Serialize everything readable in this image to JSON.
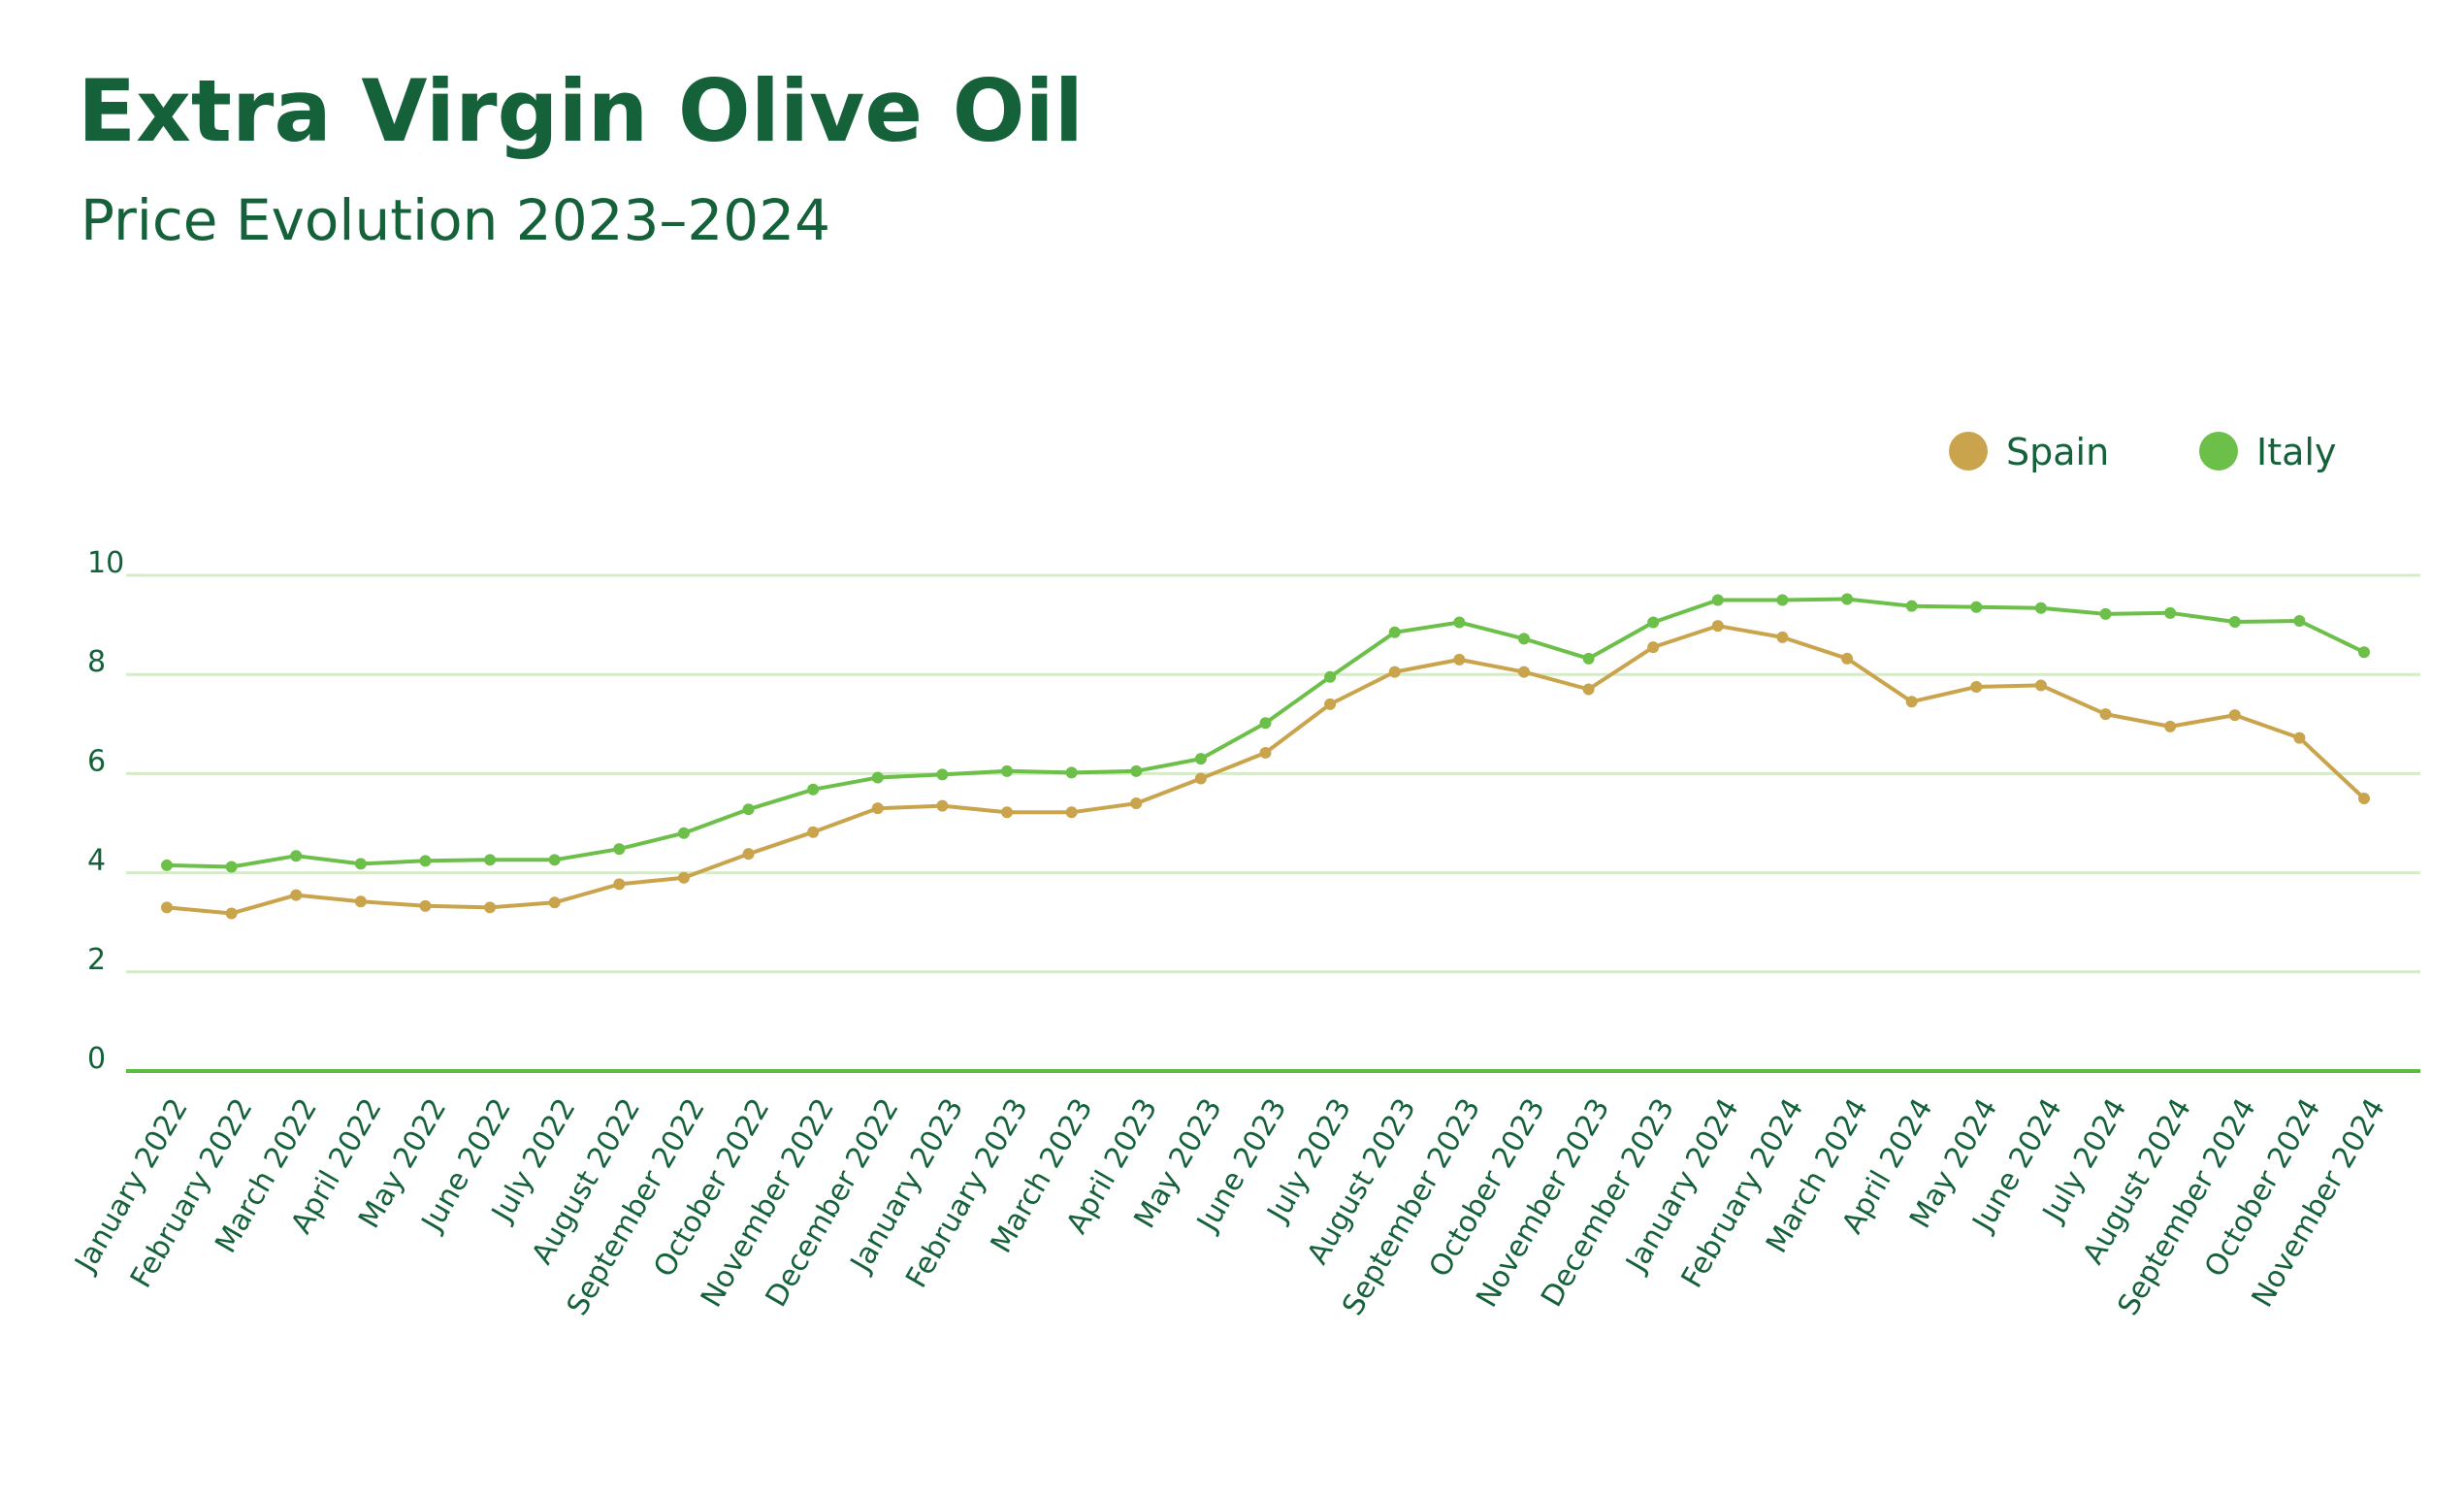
{
  "colors": {
    "title": "#14613a",
    "text": "#14613a",
    "gridline": "#d6ecc9",
    "axis": "#5dbb3f",
    "spain": "#c9a44c",
    "italy": "#6cc04a"
  },
  "chart_data": {
    "type": "line",
    "title": "Extra Virgin Olive Oil",
    "subtitle": "Price Evolution 2023–2024",
    "xlabel": "",
    "ylabel": "",
    "ylim": [
      0,
      10
    ],
    "yticks": [
      "0",
      "2",
      "4",
      "6",
      "8",
      "10"
    ],
    "grid": true,
    "legend_position": "top-right",
    "categories": [
      "January 2022",
      "February 2022",
      "March 2022",
      "April 2022",
      "May 2022",
      "June 2022",
      "July 2022",
      "August 2022",
      "September 2022",
      "October 2022",
      "November 2022",
      "December 2022",
      "January 2023",
      "February 2023",
      "March 2023",
      "April 2023",
      "May 2023",
      "June 2023",
      "July 2023",
      "August 2023",
      "September 2023",
      "October 2023",
      "November 2023",
      "December 2023",
      "January 2024",
      "February 2024",
      "March 2024",
      "April 2024",
      "May 2024",
      "June 2024",
      "July 2024",
      "August 2024",
      "September 2024",
      "October 2024",
      "November 2024"
    ],
    "series": [
      {
        "name": "Spain",
        "color": "#c9a44c",
        "values": [
          3.3,
          3.18,
          3.55,
          3.42,
          3.33,
          3.3,
          3.4,
          3.77,
          3.9,
          4.38,
          4.82,
          5.3,
          5.35,
          5.22,
          5.22,
          5.4,
          5.9,
          6.42,
          7.4,
          8.05,
          8.3,
          8.05,
          7.7,
          8.55,
          8.98,
          8.75,
          8.32,
          7.45,
          7.75,
          7.78,
          7.2,
          6.95,
          7.18,
          6.72,
          5.5
        ]
      },
      {
        "name": "Italy",
        "color": "#6cc04a",
        "values": [
          4.15,
          4.12,
          4.34,
          4.18,
          4.24,
          4.26,
          4.26,
          4.48,
          4.8,
          5.28,
          5.68,
          5.92,
          5.98,
          6.05,
          6.02,
          6.05,
          6.3,
          7.02,
          7.95,
          8.85,
          9.05,
          8.72,
          8.32,
          9.05,
          9.5,
          9.5,
          9.52,
          9.38,
          9.36,
          9.34,
          9.22,
          9.24,
          9.06,
          9.08,
          8.45
        ]
      }
    ]
  }
}
